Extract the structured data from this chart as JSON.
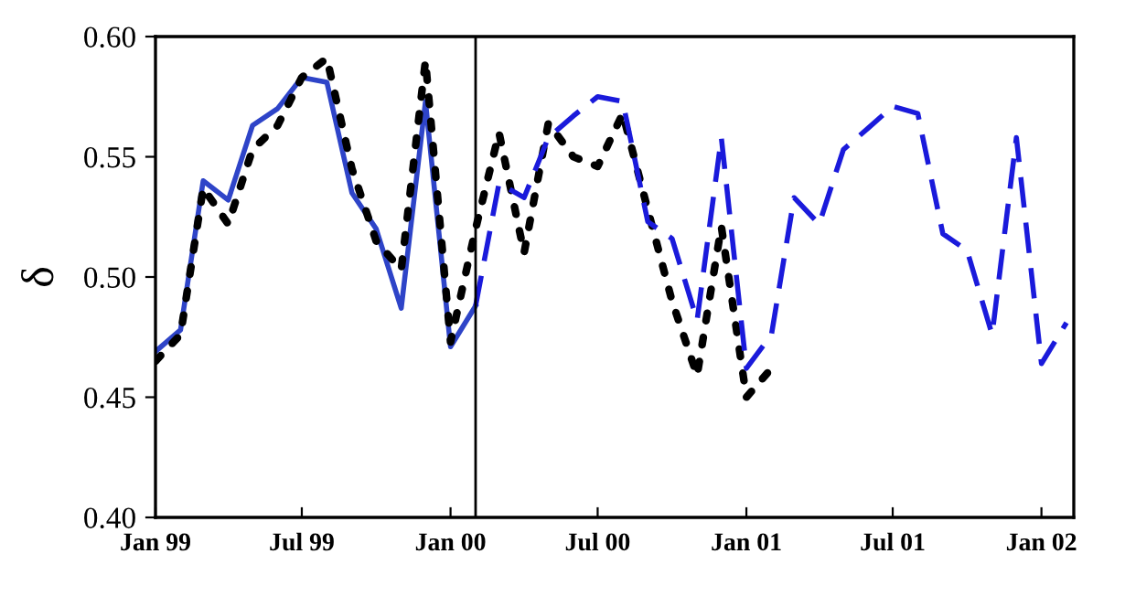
{
  "chart_data": {
    "type": "line",
    "ylabel": "δ",
    "xlim": [
      "1999-01-01",
      "2002-02-10"
    ],
    "ylim": [
      0.4,
      0.6
    ],
    "xticks": [
      {
        "value": "1999-01-01",
        "label": "Jan 99"
      },
      {
        "value": "1999-07-01",
        "label": "Jul 99"
      },
      {
        "value": "2000-01-01",
        "label": "Jan 00"
      },
      {
        "value": "2000-07-01",
        "label": "Jul 00"
      },
      {
        "value": "2001-01-01",
        "label": "Jan 01"
      },
      {
        "value": "2001-07-01",
        "label": "Jul 01"
      },
      {
        "value": "2002-01-01",
        "label": "Jan 02"
      }
    ],
    "yticks": [
      {
        "value": 0.4,
        "label": "0.40"
      },
      {
        "value": 0.45,
        "label": "0.45"
      },
      {
        "value": 0.5,
        "label": "0.50"
      },
      {
        "value": 0.55,
        "label": "0.55"
      },
      {
        "value": 0.6,
        "label": "0.60"
      }
    ],
    "grid": false,
    "legend": false,
    "marker": "none",
    "ref_lines": [
      {
        "axis": "x",
        "value": "2000-02-01",
        "color": "#000000",
        "line_style": "solid"
      }
    ],
    "series": [
      {
        "color": "#2e44c8",
        "line_style": "solid",
        "x": [
          "1999-01",
          "1999-02",
          "1999-03",
          "1999-04",
          "1999-05",
          "1999-06",
          "1999-07",
          "1999-08",
          "1999-09",
          "1999-10",
          "1999-11",
          "1999-12",
          "2000-01",
          "2000-02"
        ],
        "values": [
          0.469,
          0.478,
          0.54,
          0.532,
          0.563,
          0.57,
          0.583,
          0.581,
          0.535,
          0.52,
          0.487,
          0.573,
          0.471,
          0.488
        ]
      },
      {
        "color": "#000000",
        "line_style": "dotted",
        "x": [
          "1999-01",
          "1999-02",
          "1999-03",
          "1999-04",
          "1999-05",
          "1999-06",
          "1999-07",
          "1999-08",
          "1999-09",
          "1999-10",
          "1999-11",
          "1999-12",
          "2000-01",
          "2000-02",
          "2000-03",
          "2000-04",
          "2000-05",
          "2000-06",
          "2000-07",
          "2000-08",
          "2000-09",
          "2000-10",
          "2000-11",
          "2000-12",
          "2001-01",
          "2001-02"
        ],
        "values": [
          0.465,
          0.476,
          0.537,
          0.522,
          0.553,
          0.563,
          0.583,
          0.591,
          0.545,
          0.515,
          0.503,
          0.59,
          0.473,
          0.52,
          0.56,
          0.51,
          0.564,
          0.55,
          0.546,
          0.568,
          0.528,
          0.49,
          0.459,
          0.521,
          0.45,
          0.462
        ]
      },
      {
        "color": "#1a1adb",
        "line_style": "dashed",
        "x": [
          "2000-02",
          "2000-03",
          "2000-04",
          "2000-05",
          "2000-06",
          "2000-07",
          "2000-08",
          "2000-09",
          "2000-10",
          "2000-11",
          "2000-12",
          "2001-01",
          "2001-02",
          "2001-03",
          "2001-04",
          "2001-05",
          "2001-06",
          "2001-07",
          "2001-08",
          "2001-09",
          "2001-10",
          "2001-11",
          "2001-12",
          "2002-01",
          "2002-02"
        ],
        "values": [
          0.488,
          0.539,
          0.533,
          0.558,
          0.567,
          0.575,
          0.573,
          0.523,
          0.516,
          0.482,
          0.558,
          0.462,
          0.476,
          0.533,
          0.522,
          0.553,
          0.562,
          0.571,
          0.568,
          0.518,
          0.511,
          0.476,
          0.558,
          0.464,
          0.481
        ]
      }
    ]
  }
}
